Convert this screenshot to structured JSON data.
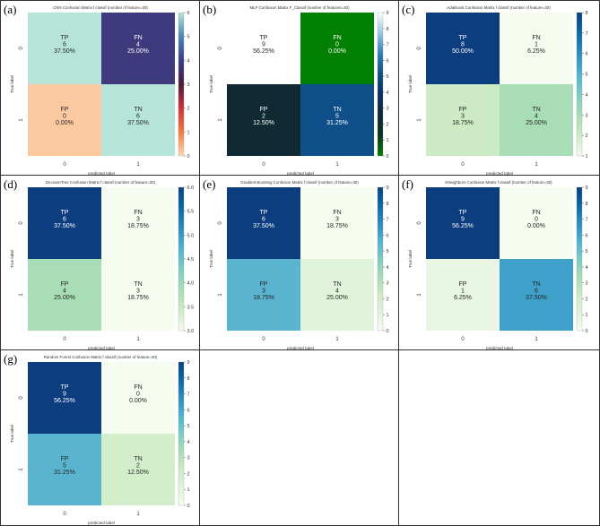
{
  "panels": [
    {
      "panel_label": "(a)",
      "title": "CNN Confusion Matrix f classif (number of feature=30)",
      "xlabel": "predicted label",
      "ylabel": "True label",
      "x_ticks": [
        "0",
        "1"
      ],
      "y_ticks": [
        "0",
        "1"
      ],
      "cells": [
        {
          "name": "TP",
          "count": "6",
          "pct": "37.50%",
          "color": "#b7e4d9"
        },
        {
          "name": "FN",
          "count": "4",
          "pct": "25.00%",
          "color": "#3f3a7d"
        },
        {
          "name": "FP",
          "count": "0",
          "pct": "0.00%",
          "color": "#fdc9a1"
        },
        {
          "name": "TN",
          "count": "6",
          "pct": "37.50%",
          "color": "#b7e4d9"
        }
      ],
      "colorbar_ticks": [
        "0",
        "1",
        "2",
        "3",
        "4",
        "5",
        "6"
      ],
      "colorbar_colors": [
        "#fdd7b3",
        "#f57a3a",
        "#d72d3c",
        "#4a1d3a",
        "#3b3d8a",
        "#4887b5",
        "#b7e4d9"
      ]
    },
    {
      "panel_label": "(b)",
      "title": "MLP Confusion Matrix F_Classif (number of features=30)",
      "xlabel": "predicted label",
      "ylabel": "True label",
      "x_ticks": [
        "0",
        "1"
      ],
      "y_ticks": [
        "0",
        "1"
      ],
      "cells": [
        {
          "name": "TP",
          "count": "9",
          "pct": "56.25%",
          "color": "#ffffff"
        },
        {
          "name": "FN",
          "count": "0",
          "pct": "0.00%",
          "color": "#008000"
        },
        {
          "name": "FP",
          "count": "2",
          "pct": "12.50%",
          "color": "#0f2a33"
        },
        {
          "name": "TN",
          "count": "5",
          "pct": "31.25%",
          "color": "#0e4f8a"
        }
      ],
      "colorbar_ticks": [
        "0",
        "1",
        "2",
        "3",
        "4",
        "5",
        "6",
        "7",
        "8",
        "9"
      ],
      "colorbar_colors": [
        "#008000",
        "#0a3322",
        "#0f2a33",
        "#0c2f60",
        "#0e4f8a",
        "#2f7fbf",
        "#9bc4e6",
        "#ffffff"
      ]
    },
    {
      "panel_label": "(c)",
      "title": "AdaBoost Confusion Matrix f classif (number of feature=30)",
      "xlabel": "predicted label",
      "ylabel": "True label",
      "x_ticks": [
        "0",
        "1"
      ],
      "y_ticks": [
        "0",
        "1"
      ],
      "cells": [
        {
          "name": "TP",
          "count": "8",
          "pct": "50.00%",
          "color": "#0b3d7f"
        },
        {
          "name": "FN",
          "count": "1",
          "pct": "6.25%",
          "color": "#f7fcf0"
        },
        {
          "name": "FP",
          "count": "3",
          "pct": "18.75%",
          "color": "#ccebc5"
        },
        {
          "name": "TN",
          "count": "4",
          "pct": "25.00%",
          "color": "#a8ddb5"
        }
      ],
      "colorbar_ticks": [
        "1",
        "2",
        "3",
        "4",
        "5",
        "6",
        "7",
        "8"
      ],
      "colorbar_colors": [
        "#f7fcf0",
        "#ccebc5",
        "#a8ddb5",
        "#7bccc4",
        "#4eb3d3",
        "#2b8cbe",
        "#0868ac",
        "#084081"
      ]
    },
    {
      "panel_label": "(d)",
      "title": "DecisionTree Confusion Matrix f classif (number of feature=30)",
      "xlabel": "predicted label",
      "ylabel": "True label",
      "x_ticks": [
        "0",
        "1"
      ],
      "y_ticks": [
        "0",
        "1"
      ],
      "cells": [
        {
          "name": "TP",
          "count": "6",
          "pct": "37.50%",
          "color": "#0b3d7f"
        },
        {
          "name": "FN",
          "count": "3",
          "pct": "18.75%",
          "color": "#f7fcf0"
        },
        {
          "name": "FP",
          "count": "4",
          "pct": "25.00%",
          "color": "#a8ddb5"
        },
        {
          "name": "TN",
          "count": "3",
          "pct": "18.75%",
          "color": "#f7fcf0"
        }
      ],
      "colorbar_ticks": [
        "3.0",
        "3.5",
        "4.0",
        "4.5",
        "5.0",
        "5.5",
        "6.0"
      ],
      "colorbar_colors": [
        "#f7fcf0",
        "#ccebc5",
        "#a8ddb5",
        "#7bccc4",
        "#4eb3d3",
        "#2b8cbe",
        "#0868ac",
        "#084081"
      ]
    },
    {
      "panel_label": "(e)",
      "title": "Gradient Boosting Confusion Matrix f classif (number of feature=30)",
      "xlabel": "predicted label",
      "ylabel": "True label",
      "x_ticks": [
        "0",
        "1"
      ],
      "y_ticks": [
        "0",
        "1"
      ],
      "cells": [
        {
          "name": "TP",
          "count": "6",
          "pct": "37.50%",
          "color": "#0b3d7f"
        },
        {
          "name": "FN",
          "count": "3",
          "pct": "18.75%",
          "color": "#f7fcf0"
        },
        {
          "name": "FP",
          "count": "3",
          "pct": "18.75%",
          "color": "#5ab4cf"
        },
        {
          "name": "TN",
          "count": "4",
          "pct": "25.00%",
          "color": "#e0f3db"
        }
      ],
      "colorbar_ticks": [
        "0",
        "1",
        "2",
        "3",
        "4",
        "5",
        "6",
        "7",
        "8",
        "9"
      ],
      "colorbar_colors": [
        "#f7fcf0",
        "#e0f3db",
        "#ccebc5",
        "#a8ddb5",
        "#7bccc4",
        "#4eb3d3",
        "#2b8cbe",
        "#0868ac",
        "#084081"
      ]
    },
    {
      "panel_label": "(f)",
      "title": "KNeighbors Confusion Matrix f classif (number of feature=30)",
      "xlabel": "predicted label",
      "ylabel": "True label",
      "x_ticks": [
        "0",
        "1"
      ],
      "y_ticks": [
        "0",
        "1"
      ],
      "cells": [
        {
          "name": "TP",
          "count": "9",
          "pct": "56.25%",
          "color": "#0b3d7f"
        },
        {
          "name": "FN",
          "count": "0",
          "pct": "0.00%",
          "color": "#f7fcf0"
        },
        {
          "name": "FP",
          "count": "1",
          "pct": "6.25%",
          "color": "#e8f6e3"
        },
        {
          "name": "TN",
          "count": "6",
          "pct": "37.50%",
          "color": "#3fa0ca"
        }
      ],
      "colorbar_ticks": [
        "0",
        "1",
        "2",
        "3",
        "4",
        "5",
        "6",
        "7",
        "8",
        "9"
      ],
      "colorbar_colors": [
        "#f7fcf0",
        "#e0f3db",
        "#ccebc5",
        "#a8ddb5",
        "#7bccc4",
        "#4eb3d3",
        "#2b8cbe",
        "#0868ac",
        "#084081"
      ]
    },
    {
      "panel_label": "(g)",
      "title": "Random Forest Confusion Matrix f classif (number of feature=30)",
      "xlabel": "predicted label",
      "ylabel": "True label",
      "x_ticks": [
        "0",
        "1"
      ],
      "y_ticks": [
        "0",
        "1"
      ],
      "cells": [
        {
          "name": "TP",
          "count": "9",
          "pct": "56.25%",
          "color": "#0b3d7f"
        },
        {
          "name": "FN",
          "count": "0",
          "pct": "0.00%",
          "color": "#f7fcf0"
        },
        {
          "name": "FP",
          "count": "5",
          "pct": "31.25%",
          "color": "#5ab4cf"
        },
        {
          "name": "TN",
          "count": "2",
          "pct": "12.50%",
          "color": "#d3eecb"
        }
      ],
      "colorbar_ticks": [
        "0",
        "1",
        "2",
        "3",
        "4",
        "5",
        "6",
        "7",
        "8",
        "9"
      ],
      "colorbar_colors": [
        "#f7fcf0",
        "#e0f3db",
        "#ccebc5",
        "#a8ddb5",
        "#7bccc4",
        "#4eb3d3",
        "#2b8cbe",
        "#0868ac",
        "#084081"
      ]
    }
  ],
  "chart_data": [
    {
      "type": "heatmap",
      "title": "CNN Confusion Matrix f classif (number of feature=30)",
      "xlabel": "predicted label",
      "ylabel": "True label",
      "x_categories": [
        "0",
        "1"
      ],
      "y_categories": [
        "0",
        "1"
      ],
      "values": [
        [
          6,
          4
        ],
        [
          0,
          6
        ]
      ],
      "percentages": [
        [
          37.5,
          25.0
        ],
        [
          0.0,
          37.5
        ]
      ],
      "colorbar_range": [
        0,
        6
      ]
    },
    {
      "type": "heatmap",
      "title": "MLP Confusion Matrix F_Classif (number of features=30)",
      "xlabel": "predicted label",
      "ylabel": "True label",
      "x_categories": [
        "0",
        "1"
      ],
      "y_categories": [
        "0",
        "1"
      ],
      "values": [
        [
          9,
          0
        ],
        [
          2,
          5
        ]
      ],
      "percentages": [
        [
          56.25,
          0.0
        ],
        [
          12.5,
          31.25
        ]
      ],
      "colorbar_range": [
        0,
        9
      ]
    },
    {
      "type": "heatmap",
      "title": "AdaBoost Confusion Matrix f classif (number of feature=30)",
      "xlabel": "predicted label",
      "ylabel": "True label",
      "x_categories": [
        "0",
        "1"
      ],
      "y_categories": [
        "0",
        "1"
      ],
      "values": [
        [
          8,
          1
        ],
        [
          3,
          4
        ]
      ],
      "percentages": [
        [
          50.0,
          6.25
        ],
        [
          18.75,
          25.0
        ]
      ],
      "colorbar_range": [
        1,
        8
      ]
    },
    {
      "type": "heatmap",
      "title": "DecisionTree Confusion Matrix f classif (number of feature=30)",
      "xlabel": "predicted label",
      "ylabel": "True label",
      "x_categories": [
        "0",
        "1"
      ],
      "y_categories": [
        "0",
        "1"
      ],
      "values": [
        [
          6,
          3
        ],
        [
          4,
          3
        ]
      ],
      "percentages": [
        [
          37.5,
          18.75
        ],
        [
          25.0,
          18.75
        ]
      ],
      "colorbar_range": [
        3.0,
        6.0
      ]
    },
    {
      "type": "heatmap",
      "title": "Gradient Boosting Confusion Matrix f classif (number of feature=30)",
      "xlabel": "predicted label",
      "ylabel": "True label",
      "x_categories": [
        "0",
        "1"
      ],
      "y_categories": [
        "0",
        "1"
      ],
      "values": [
        [
          6,
          3
        ],
        [
          3,
          4
        ]
      ],
      "percentages": [
        [
          37.5,
          18.75
        ],
        [
          18.75,
          25.0
        ]
      ],
      "colorbar_range": [
        0,
        9
      ]
    },
    {
      "type": "heatmap",
      "title": "KNeighbors Confusion Matrix f classif (number of feature=30)",
      "xlabel": "predicted label",
      "ylabel": "True label",
      "x_categories": [
        "0",
        "1"
      ],
      "y_categories": [
        "0",
        "1"
      ],
      "values": [
        [
          9,
          0
        ],
        [
          1,
          6
        ]
      ],
      "percentages": [
        [
          56.25,
          0.0
        ],
        [
          6.25,
          37.5
        ]
      ],
      "colorbar_range": [
        0,
        9
      ]
    },
    {
      "type": "heatmap",
      "title": "Random Forest Confusion Matrix f classif (number of feature=30)",
      "xlabel": "predicted label",
      "ylabel": "True label",
      "x_categories": [
        "0",
        "1"
      ],
      "y_categories": [
        "0",
        "1"
      ],
      "values": [
        [
          9,
          0
        ],
        [
          5,
          2
        ]
      ],
      "percentages": [
        [
          56.25,
          0.0
        ],
        [
          31.25,
          12.5
        ]
      ],
      "colorbar_range": [
        0,
        9
      ]
    }
  ]
}
